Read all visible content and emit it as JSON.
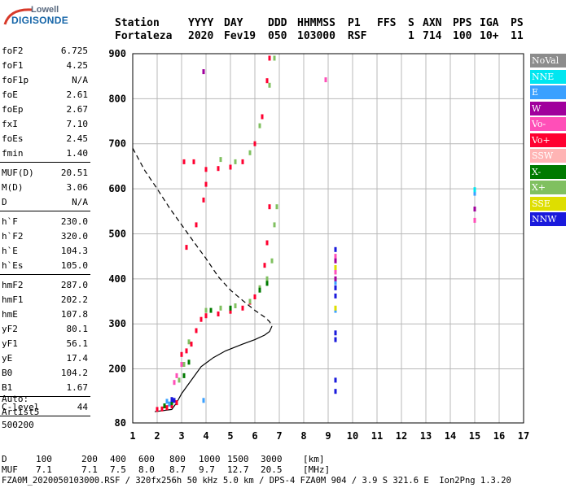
{
  "logo": {
    "line1": "Lowell",
    "line2": "DIGISONDE"
  },
  "header": {
    "row1": [
      "Station",
      "YYYY",
      "DAY",
      "DDD",
      "HHMMSS",
      "P1",
      "FFS",
      "S",
      "AXN",
      "PPS",
      "IGA",
      "PS"
    ],
    "row2": [
      "Fortaleza",
      "2020",
      "Fev19",
      "050",
      "103000",
      "RSF",
      "1",
      "714",
      "100",
      "10+",
      "11"
    ]
  },
  "params": {
    "group1": [
      {
        "k": "foF2",
        "v": "6.725"
      },
      {
        "k": "foF1",
        "v": "4.25"
      },
      {
        "k": "foF1p",
        "v": "N/A"
      },
      {
        "k": "foE",
        "v": "2.61"
      },
      {
        "k": "foEp",
        "v": "2.67"
      },
      {
        "k": "fxI",
        "v": "7.10"
      },
      {
        "k": "foEs",
        "v": "2.45"
      },
      {
        "k": "fmin",
        "v": "1.40"
      }
    ],
    "group2": [
      {
        "k": "MUF(D)",
        "v": "20.51"
      },
      {
        "k": "M(D)",
        "v": "3.06"
      },
      {
        "k": "D",
        "v": "N/A"
      }
    ],
    "group3": [
      {
        "k": "h`F",
        "v": "230.0"
      },
      {
        "k": "h`F2",
        "v": "320.0"
      },
      {
        "k": "h`E",
        "v": "104.3"
      },
      {
        "k": "h`Es",
        "v": "105.0"
      }
    ],
    "group4": [
      {
        "k": "hmF2",
        "v": "287.0"
      },
      {
        "k": "hmF1",
        "v": "202.2"
      },
      {
        "k": "hmE",
        "v": "107.8"
      },
      {
        "k": "yF2",
        "v": "80.1"
      },
      {
        "k": "yF1",
        "v": "56.1"
      },
      {
        "k": "yE",
        "v": "17.4"
      },
      {
        "k": "B0",
        "v": "104.2"
      },
      {
        "k": "B1",
        "v": "1.67"
      }
    ],
    "group5": [
      {
        "k": "C-level",
        "v": "44"
      }
    ],
    "auto": [
      "Auto:",
      "Artist5",
      "500200"
    ]
  },
  "legend": [
    {
      "label": "NoVal",
      "color": "#8c8c8c"
    },
    {
      "label": "NNE",
      "color": "#00e6f0"
    },
    {
      "label": "E",
      "color": "#3aa0ff"
    },
    {
      "label": "W",
      "color": "#a0009c"
    },
    {
      "label": "Vo-",
      "color": "#ff4fb8"
    },
    {
      "label": "Vo+",
      "color": "#ff0030"
    },
    {
      "label": "SSW",
      "color": "#ffb4b4"
    },
    {
      "label": "X-",
      "color": "#007a00"
    },
    {
      "label": "X+",
      "color": "#80c060"
    },
    {
      "label": "SSE",
      "color": "#dede00"
    },
    {
      "label": "NNW",
      "color": "#1a1adc"
    }
  ],
  "footer": {
    "line1_label": "D",
    "line1_values": [
      "100",
      "200",
      "400",
      "600",
      "800",
      "1000",
      "1500",
      "3000",
      "[km]"
    ],
    "line2_label": "MUF",
    "line2_values": [
      "7.1",
      "7.1",
      "7.5",
      "8.0",
      "8.7",
      "9.7",
      "12.7",
      "20.5",
      "[MHz]"
    ],
    "line3": "FZA0M_2020050103000.RSF / 320fx256h 50 kHz 5.0 km / DPS-4 FZA0M 904 / 3.9 S 321.6 E  Ion2Png 1.3.20"
  },
  "chart_data": {
    "type": "scatter",
    "title": "",
    "xlabel": "",
    "ylabel": "",
    "xlim": [
      1,
      17
    ],
    "ylim": [
      80,
      900
    ],
    "x_ticks": [
      1,
      2,
      3,
      4,
      5,
      6,
      7,
      8,
      9,
      10,
      11,
      12,
      13,
      14,
      15,
      16,
      17
    ],
    "y_ticks": [
      80,
      200,
      300,
      400,
      500,
      600,
      700,
      800,
      900
    ],
    "grid": true,
    "legend_position": "right",
    "series": [
      {
        "name": "Vo+",
        "color": "#ff0030",
        "points": [
          [
            2.0,
            110
          ],
          [
            2.2,
            111
          ],
          [
            2.4,
            114
          ],
          [
            2.6,
            118
          ],
          [
            2.8,
            125
          ],
          [
            3.0,
            232
          ],
          [
            3.2,
            240
          ],
          [
            3.4,
            255
          ],
          [
            3.6,
            285
          ],
          [
            3.8,
            310
          ],
          [
            4.0,
            318
          ],
          [
            4.5,
            322
          ],
          [
            5.0,
            328
          ],
          [
            5.5,
            335
          ],
          [
            5.8,
            348
          ],
          [
            6.0,
            360
          ],
          [
            6.2,
            380
          ],
          [
            6.4,
            430
          ],
          [
            6.5,
            480
          ],
          [
            6.6,
            560
          ],
          [
            3.2,
            470
          ],
          [
            3.6,
            520
          ],
          [
            3.9,
            575
          ],
          [
            4.0,
            610
          ],
          [
            3.1,
            660
          ],
          [
            3.5,
            660
          ],
          [
            4.0,
            643
          ],
          [
            4.5,
            645
          ],
          [
            5.0,
            648
          ],
          [
            5.5,
            660
          ],
          [
            6.0,
            700
          ],
          [
            6.3,
            760
          ],
          [
            6.5,
            840
          ],
          [
            6.6,
            890
          ]
        ]
      },
      {
        "name": "X+",
        "color": "#80c060",
        "points": [
          [
            2.9,
            175
          ],
          [
            3.1,
            210
          ],
          [
            3.3,
            260
          ],
          [
            4.0,
            330
          ],
          [
            4.6,
            335
          ],
          [
            5.2,
            340
          ],
          [
            5.8,
            350
          ],
          [
            6.2,
            380
          ],
          [
            6.5,
            400
          ],
          [
            6.7,
            440
          ],
          [
            6.8,
            520
          ],
          [
            6.9,
            560
          ],
          [
            4.6,
            665
          ],
          [
            5.2,
            660
          ],
          [
            5.8,
            680
          ],
          [
            6.2,
            740
          ],
          [
            6.6,
            830
          ],
          [
            6.8,
            890
          ]
        ]
      },
      {
        "name": "X-",
        "color": "#007a00",
        "points": [
          [
            2.3,
            118
          ],
          [
            2.6,
            125
          ],
          [
            3.1,
            185
          ],
          [
            3.3,
            215
          ],
          [
            4.2,
            330
          ],
          [
            5.0,
            335
          ],
          [
            6.2,
            375
          ],
          [
            6.5,
            390
          ]
        ]
      },
      {
        "name": "Vo-",
        "color": "#ff4fb8",
        "points": [
          [
            2.7,
            170
          ],
          [
            2.8,
            185
          ],
          [
            3.0,
            210
          ],
          [
            9.3,
            450
          ],
          [
            9.3,
            415
          ],
          [
            8.9,
            842
          ],
          [
            15.0,
            530
          ]
        ]
      },
      {
        "name": "NNW",
        "color": "#1a1adc",
        "points": [
          [
            9.3,
            465
          ],
          [
            9.3,
            380
          ],
          [
            9.3,
            362
          ],
          [
            9.3,
            280
          ],
          [
            9.3,
            265
          ],
          [
            9.3,
            175
          ],
          [
            9.3,
            150
          ],
          [
            2.6,
            132
          ],
          [
            2.7,
            130
          ]
        ]
      },
      {
        "name": "E",
        "color": "#3aa0ff",
        "points": [
          [
            9.3,
            392
          ],
          [
            9.3,
            330
          ],
          [
            2.4,
            128
          ],
          [
            2.5,
            122
          ],
          [
            3.9,
            130
          ],
          [
            15.0,
            590
          ]
        ]
      },
      {
        "name": "W",
        "color": "#a0009c",
        "points": [
          [
            9.3,
            440
          ],
          [
            9.3,
            400
          ],
          [
            15.0,
            555
          ],
          [
            3.9,
            860
          ]
        ]
      },
      {
        "name": "SSE",
        "color": "#dede00",
        "points": [
          [
            9.3,
            425
          ],
          [
            9.3,
            335
          ]
        ]
      },
      {
        "name": "NNE",
        "color": "#00e6f0",
        "points": [
          [
            15.0,
            598
          ]
        ]
      }
    ],
    "profile_curve": [
      [
        1.9,
        105
      ],
      [
        2.6,
        110
      ],
      [
        2.8,
        125
      ],
      [
        3.0,
        145
      ],
      [
        3.4,
        175
      ],
      [
        3.8,
        205
      ],
      [
        4.3,
        225
      ],
      [
        4.8,
        240
      ],
      [
        5.5,
        255
      ],
      [
        6.0,
        265
      ],
      [
        6.4,
        275
      ],
      [
        6.6,
        283
      ],
      [
        6.7,
        295
      ]
    ],
    "extrapolated_curve": [
      [
        1.0,
        690
      ],
      [
        1.5,
        640
      ],
      [
        2.0,
        600
      ],
      [
        2.5,
        558
      ],
      [
        3.0,
        520
      ],
      [
        3.5,
        482
      ],
      [
        4.0,
        445
      ],
      [
        4.5,
        405
      ],
      [
        5.0,
        375
      ],
      [
        5.5,
        352
      ],
      [
        6.0,
        330
      ],
      [
        6.4,
        315
      ],
      [
        6.6,
        305
      ],
      [
        6.7,
        295
      ]
    ]
  }
}
